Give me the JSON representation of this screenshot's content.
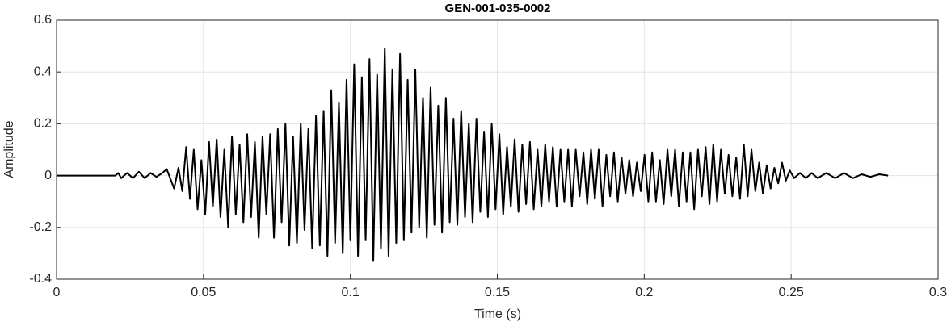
{
  "chart_data": {
    "type": "line",
    "title": "GEN-001-035-0002",
    "x_label": "Time (s)",
    "y_label": "Amplitude",
    "xlim": [
      0,
      0.3
    ],
    "xticks": [
      0,
      0.05,
      0.1,
      0.15,
      0.2,
      0.25,
      0.3
    ],
    "ylim": [
      -0.4,
      0.6
    ],
    "yticks": [
      -0.4,
      -0.2,
      0,
      0.2,
      0.4,
      0.6
    ],
    "grid": true,
    "color": "#000000",
    "x": [
      0,
      0.02,
      0.021,
      0.022,
      0.024,
      0.026,
      0.028,
      0.03,
      0.032,
      0.034,
      0.036,
      0.0375,
      0.039,
      0.04,
      0.0415,
      0.0428,
      0.0441,
      0.0454,
      0.0467,
      0.048,
      0.0493,
      0.0506,
      0.0519,
      0.0532,
      0.0545,
      0.0558,
      0.0571,
      0.0584,
      0.0597,
      0.061,
      0.0623,
      0.0636,
      0.0649,
      0.0662,
      0.0675,
      0.0688,
      0.0701,
      0.0714,
      0.0727,
      0.074,
      0.0753,
      0.0766,
      0.0779,
      0.0792,
      0.0805,
      0.0818,
      0.0831,
      0.0844,
      0.0857,
      0.087,
      0.0883,
      0.0896,
      0.0909,
      0.0922,
      0.0935,
      0.0948,
      0.0961,
      0.0974,
      0.0987,
      0.1,
      0.1013,
      0.1026,
      0.1039,
      0.1052,
      0.1065,
      0.1078,
      0.1091,
      0.1104,
      0.1117,
      0.113,
      0.1143,
      0.1156,
      0.1169,
      0.1182,
      0.1195,
      0.1208,
      0.1221,
      0.1234,
      0.1247,
      0.126,
      0.1273,
      0.1286,
      0.1299,
      0.1312,
      0.1325,
      0.1338,
      0.1351,
      0.1364,
      0.1377,
      0.139,
      0.1403,
      0.1416,
      0.1429,
      0.1442,
      0.1455,
      0.1468,
      0.1481,
      0.1494,
      0.1507,
      0.152,
      0.1533,
      0.1546,
      0.1559,
      0.1572,
      0.1585,
      0.1598,
      0.1611,
      0.1624,
      0.1637,
      0.165,
      0.1663,
      0.1676,
      0.1689,
      0.1702,
      0.1715,
      0.1728,
      0.1741,
      0.1754,
      0.1767,
      0.178,
      0.1793,
      0.1806,
      0.1819,
      0.1832,
      0.1845,
      0.1858,
      0.1871,
      0.1884,
      0.1897,
      0.191,
      0.1923,
      0.1936,
      0.1949,
      0.1962,
      0.1975,
      0.1988,
      0.2001,
      0.2014,
      0.2027,
      0.204,
      0.2053,
      0.2066,
      0.2079,
      0.2092,
      0.2105,
      0.2118,
      0.2131,
      0.2144,
      0.2157,
      0.217,
      0.2183,
      0.2196,
      0.2209,
      0.2222,
      0.2235,
      0.2248,
      0.2261,
      0.2274,
      0.2287,
      0.23,
      0.2313,
      0.2326,
      0.2339,
      0.2352,
      0.2365,
      0.2378,
      0.2391,
      0.2404,
      0.2417,
      0.243,
      0.2443,
      0.2456,
      0.2469,
      0.2482,
      0.2495,
      0.251,
      0.253,
      0.255,
      0.257,
      0.259,
      0.262,
      0.265,
      0.268,
      0.271,
      0.274,
      0.277,
      0.28,
      0.283
    ],
    "values": [
      0,
      0,
      0.01,
      -0.01,
      0.01,
      -0.01,
      0.015,
      -0.01,
      0.01,
      -0.005,
      0.01,
      0.025,
      -0.02,
      -0.05,
      0.03,
      -0.06,
      0.11,
      -0.09,
      0.1,
      -0.13,
      0.06,
      -0.15,
      0.13,
      -0.12,
      0.14,
      -0.16,
      0.1,
      -0.2,
      0.15,
      -0.15,
      0.12,
      -0.18,
      0.16,
      -0.16,
      0.13,
      -0.24,
      0.15,
      -0.15,
      0.16,
      -0.24,
      0.18,
      -0.18,
      0.2,
      -0.27,
      0.15,
      -0.26,
      0.2,
      -0.21,
      0.18,
      -0.28,
      0.23,
      -0.27,
      0.25,
      -0.31,
      0.33,
      -0.26,
      0.28,
      -0.3,
      0.37,
      -0.25,
      0.43,
      -0.31,
      0.38,
      -0.25,
      0.45,
      -0.33,
      0.39,
      -0.28,
      0.49,
      -0.31,
      0.41,
      -0.26,
      0.47,
      -0.25,
      0.37,
      -0.22,
      0.41,
      -0.2,
      0.3,
      -0.24,
      0.34,
      -0.19,
      0.27,
      -0.22,
      0.3,
      -0.18,
      0.22,
      -0.19,
      0.25,
      -0.16,
      0.2,
      -0.18,
      0.22,
      -0.14,
      0.17,
      -0.16,
      0.2,
      -0.13,
      0.16,
      -0.15,
      0.11,
      -0.12,
      0.14,
      -0.14,
      0.12,
      -0.11,
      0.13,
      -0.13,
      0.1,
      -0.12,
      0.12,
      -0.1,
      0.11,
      -0.12,
      0.1,
      -0.1,
      0.1,
      -0.12,
      0.1,
      -0.08,
      0.09,
      -0.11,
      0.1,
      -0.09,
      0.1,
      -0.12,
      0.08,
      -0.08,
      0.09,
      -0.1,
      0.07,
      -0.07,
      0.06,
      -0.08,
      0.05,
      -0.06,
      0.08,
      -0.1,
      0.09,
      -0.1,
      0.06,
      -0.11,
      0.1,
      -0.08,
      0.1,
      -0.12,
      0.09,
      -0.1,
      0.09,
      -0.13,
      0.1,
      -0.08,
      0.11,
      -0.11,
      0.12,
      -0.1,
      0.1,
      -0.07,
      0.08,
      -0.08,
      0.07,
      -0.09,
      0.12,
      -0.08,
      0.1,
      -0.06,
      0.05,
      -0.07,
      0.04,
      -0.05,
      0.03,
      -0.03,
      0.05,
      -0.02,
      0.02,
      -0.01,
      0.01,
      -0.01,
      0.01,
      -0.01,
      0.01,
      -0.01,
      0.01,
      -0.01,
      0.005,
      -0.005,
      0.005,
      0
    ]
  }
}
